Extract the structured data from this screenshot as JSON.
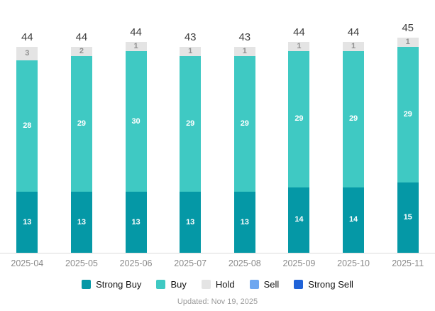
{
  "chart_data": {
    "type": "bar",
    "stacked": true,
    "title": "",
    "xlabel": "",
    "ylabel": "",
    "grid": false,
    "legend_position": "bottom",
    "categories": [
      "2025-04",
      "2025-05",
      "2025-06",
      "2025-07",
      "2025-08",
      "2025-09",
      "2025-10",
      "2025-11"
    ],
    "series": [
      {
        "name": "Strong Buy",
        "color": "#0598A6",
        "label_color": "#ffffff",
        "values": [
          13,
          13,
          13,
          13,
          13,
          14,
          14,
          15
        ]
      },
      {
        "name": "Buy",
        "color": "#3FC9C3",
        "label_color": "#ffffff",
        "values": [
          28,
          29,
          30,
          29,
          29,
          29,
          29,
          29
        ]
      },
      {
        "name": "Hold",
        "color": "#E4E4E4",
        "label_color": "#8f8f8f",
        "values": [
          3,
          2,
          1,
          1,
          1,
          1,
          1,
          1
        ]
      },
      {
        "name": "Sell",
        "color": "#6EA7F0",
        "label_color": "#ffffff",
        "values": [
          0,
          0,
          0,
          0,
          0,
          0,
          0,
          0
        ]
      },
      {
        "name": "Strong Sell",
        "color": "#2063D8",
        "label_color": "#ffffff",
        "values": [
          0,
          0,
          0,
          0,
          0,
          0,
          0,
          0
        ]
      }
    ],
    "totals": [
      44,
      44,
      44,
      43,
      43,
      44,
      44,
      45
    ],
    "colors": {
      "axis_line": "#dcdcdc",
      "total_label": "#3f3f3f",
      "x_label": "#8a8a8a"
    }
  },
  "footer": {
    "updated_label": "Updated: Nov 19, 2025"
  }
}
